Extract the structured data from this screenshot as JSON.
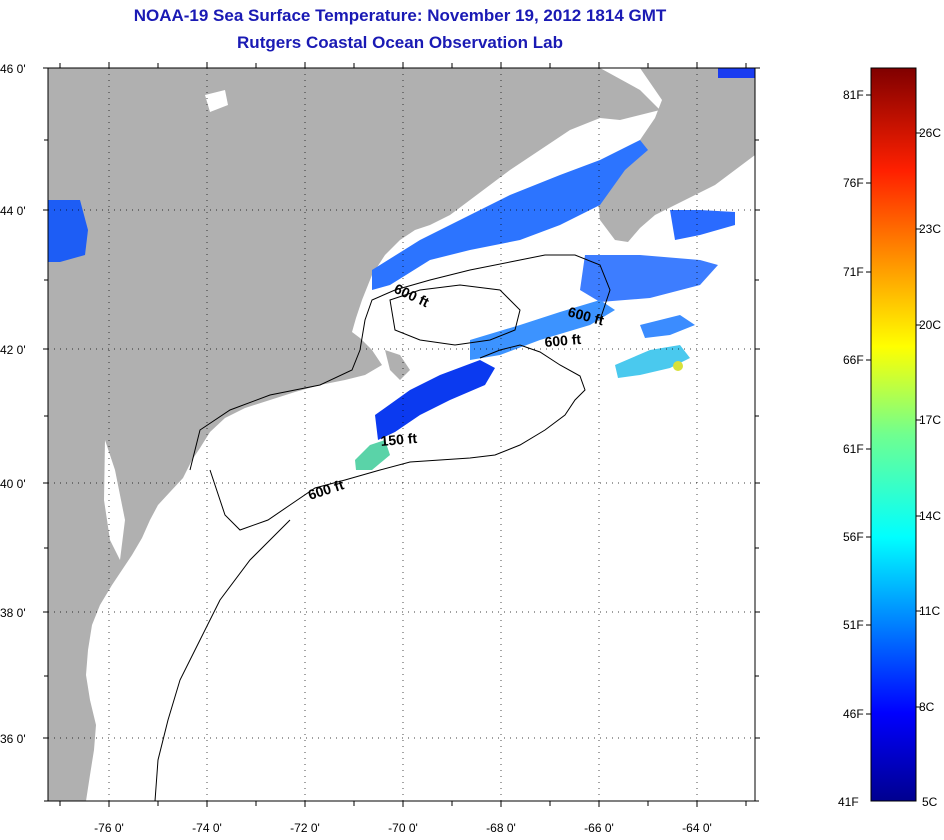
{
  "title": {
    "line1": "NOAA-19 Sea Surface Temperature:  November 19, 2012 1814 GMT",
    "line2": "Rutgers Coastal Ocean Observation Lab"
  },
  "map": {
    "lat_ticks": [
      "46 0'",
      "44 0'",
      "42 0'",
      "40 0'",
      "38 0'",
      "36 0'"
    ],
    "lon_ticks": [
      "-76 0'",
      "-74 0'",
      "-72 0'",
      "-70 0'",
      "-68 0'",
      "-66 0'",
      "-64 0'"
    ],
    "contour_labels": [
      "600 ft",
      "600 ft",
      "600 ft",
      "150 ft",
      "600 ft"
    ],
    "land_color": "#b0b0b0",
    "ocean_color": "#ffffff"
  },
  "colorbar": {
    "fahrenheit": [
      "81F",
      "76F",
      "71F",
      "66F",
      "61F",
      "56F",
      "51F",
      "46F",
      "41F"
    ],
    "celsius": [
      "26C",
      "23C",
      "20C",
      "17C",
      "14C",
      "11C",
      "8C",
      "5C"
    ]
  }
}
